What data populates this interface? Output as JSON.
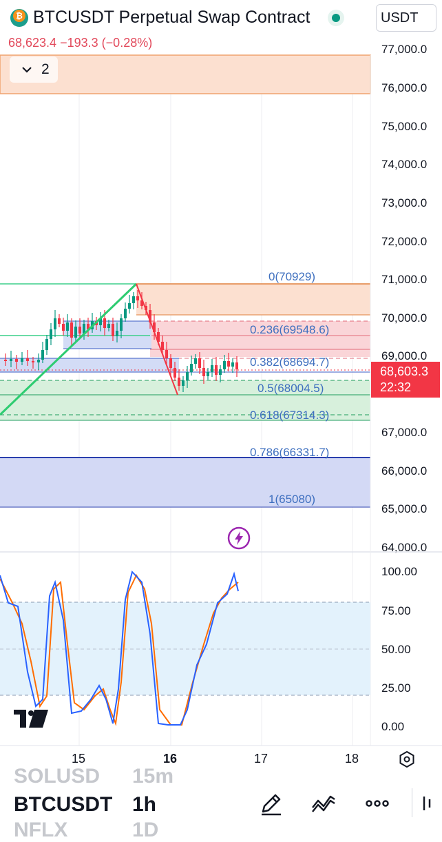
{
  "header": {
    "title": "BTCUSDT Perpetual Swap Contract",
    "currency": "USDT",
    "last_price": "68,623.4",
    "change": "−193.3",
    "change_pct": "(−0.28%)",
    "indicator_count": "2"
  },
  "price_axis": {
    "ticks": [
      "77,000.0",
      "76,000.0",
      "75,000.0",
      "74,000.0",
      "73,000.0",
      "72,000.0",
      "71,000.0",
      "70,000.0",
      "69,000.0",
      "67,000.0",
      "66,000.0",
      "65,000.0",
      "64,000.0"
    ],
    "current_price": "68,603.3",
    "countdown": "22:32"
  },
  "oscillator_axis": {
    "ticks": [
      "100.00",
      "75.00",
      "50.00",
      "25.00",
      "0.00"
    ]
  },
  "time_axis": {
    "ticks": [
      "15",
      "16",
      "17",
      "18"
    ]
  },
  "fibonacci": {
    "levels": [
      {
        "label": "0(70929)"
      },
      {
        "label": "0.236(69548.6)"
      },
      {
        "label": "0.382(68694.7)"
      },
      {
        "label": "0.5(68004.5)"
      },
      {
        "label": "0.618(67314.3)"
      },
      {
        "label": "0.786(66331.7)"
      },
      {
        "label": "1(65080)"
      }
    ]
  },
  "bottom_bar": {
    "prev_symbol": "SOLUSD",
    "prev_interval": "15m",
    "symbol": "BTCUSDT",
    "interval": "1h",
    "next_symbol": "NFLX",
    "next_interval": "1D"
  },
  "icons": {
    "logo": "bitcoin-icon",
    "status": "live-dot-icon",
    "toggle": "chevron-down-icon",
    "alert": "lightning-icon",
    "brand": "tradingview-logo",
    "settings": "settings-hexagon-icon",
    "draw": "pencil-icon",
    "indicators": "indicators-icon",
    "more": "more-icon"
  },
  "colors": {
    "up": "#089981",
    "down": "#f23645",
    "k_line": "#2962ff",
    "d_line": "#ff6d00"
  }
}
